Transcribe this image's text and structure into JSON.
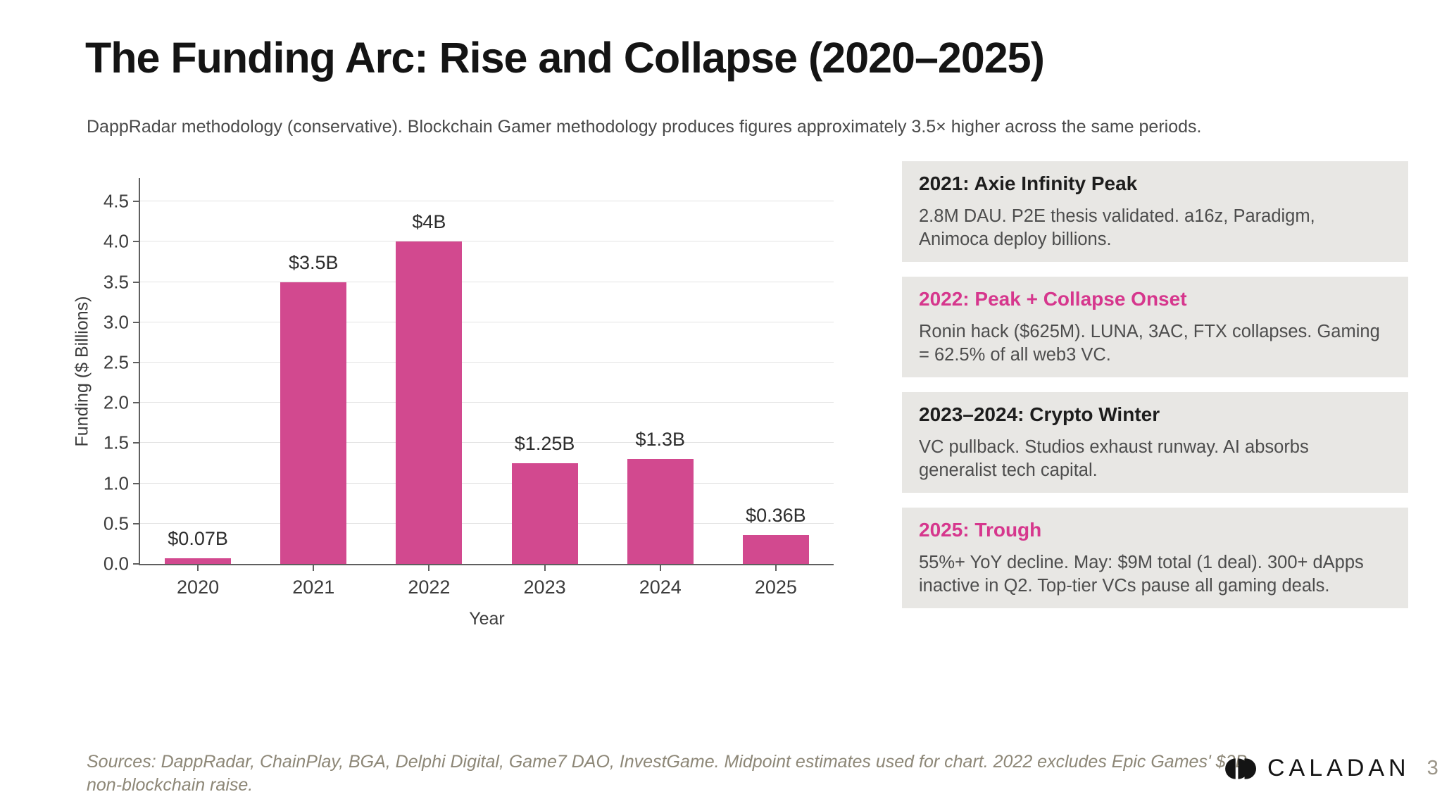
{
  "slide": {
    "title": "The Funding Arc: Rise and Collapse (2020–2025)",
    "subtitle": "DappRadar methodology (conservative). Blockchain Gamer methodology produces figures approximately 3.5× higher across the same periods."
  },
  "chart_data": {
    "type": "bar",
    "categories": [
      "2020",
      "2021",
      "2022",
      "2023",
      "2024",
      "2025"
    ],
    "values": [
      0.07,
      3.5,
      4.0,
      1.25,
      1.3,
      0.36
    ],
    "bar_labels": [
      "$0.07B",
      "$3.5B",
      "$4B",
      "$1.25B",
      "$1.3B",
      "$0.36B"
    ],
    "xlabel": "Year",
    "ylabel": "Funding ($ Billions)",
    "ylim": [
      0,
      4.79
    ],
    "yticks": [
      "0.0",
      "0.5",
      "1.0",
      "1.5",
      "2.0",
      "2.5",
      "3.0",
      "3.5",
      "4.0",
      "4.5"
    ],
    "grid": true,
    "bar_color": "#d2498f"
  },
  "callouts": [
    {
      "title": "2021: Axie Infinity Peak",
      "title_color": "#1d1d1d",
      "body": "2.8M DAU. P2E thesis validated. a16z, Paradigm, Animoca deploy billions."
    },
    {
      "title": "2022: Peak + Collapse Onset",
      "title_color": "#d6378d",
      "body": "Ronin hack ($625M). LUNA, 3AC, FTX collapses. Gaming = 62.5% of all web3 VC."
    },
    {
      "title": "2023–2024: Crypto Winter",
      "title_color": "#1d1d1d",
      "body": "VC pullback. Studios exhaust runway. AI absorbs generalist tech capital."
    },
    {
      "title": "2025: Trough",
      "title_color": "#d6378d",
      "body": "55%+ YoY decline. May: $9M total (1 deal). 300+ dApps inactive in Q2. Top-tier VCs pause all gaming deals."
    }
  ],
  "footer": {
    "sources_line1": "Sources: DappRadar, ChainPlay, BGA, Delphi Digital, Game7 DAO, InvestGame. Midpoint estimates used for chart. 2022 excludes Epic Games' $2B",
    "sources_line2": "non-blockchain raise.",
    "brand": "CALADAN",
    "page_number": "3"
  },
  "colors": {
    "bar": "#d2498f",
    "callout_pink": "#d6378d",
    "callout_background": "#e8e7e4",
    "gridline": "#e3e3e3",
    "axis": "#5f5f5f",
    "footer_text": "#8d8777"
  }
}
